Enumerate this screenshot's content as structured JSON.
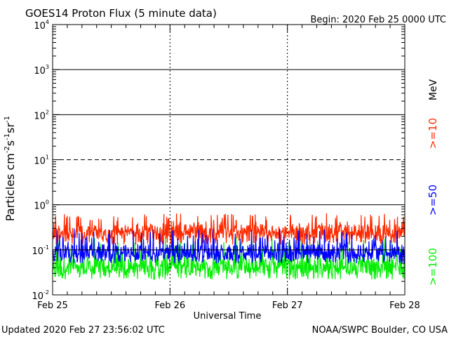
{
  "header": {
    "title": "GOES14 Proton Flux (5 minute data)",
    "begin": "Begin: 2020 Feb 25 0000 UTC"
  },
  "footer": {
    "updated": "Updated 2020 Feb 27 23:56:02 UTC",
    "credit": "NOAA/SWPC Boulder, CO USA"
  },
  "legend": {
    "unit": "MeV",
    "items": [
      {
        "label": ">=10",
        "color": "#ff2a00"
      },
      {
        "label": ">=50",
        "color": "#0000ff"
      },
      {
        "label": ">=100",
        "color": "#00ee00"
      }
    ]
  },
  "chart_data": {
    "type": "line",
    "xlabel": "Universal Time",
    "ylabel_parts": {
      "base": "Particles cm",
      "e1": "-2",
      "mid1": "s",
      "e2": "-1",
      "mid2": "sr",
      "e3": "-1"
    },
    "y_scale": "log",
    "ylim": [
      0.01,
      10000
    ],
    "x_ticks": [
      "Feb 25",
      "Feb 26",
      "Feb 27",
      "Feb 28"
    ],
    "y_ticks": [
      {
        "base": "10",
        "exp": "4",
        "value": 10000
      },
      {
        "base": "10",
        "exp": "3",
        "value": 1000
      },
      {
        "base": "10",
        "exp": "2",
        "value": 100
      },
      {
        "base": "10",
        "exp": "1",
        "value": 10
      },
      {
        "base": "10",
        "exp": "0",
        "value": 1
      },
      {
        "base": "10",
        "exp": "-1",
        "value": 0.1
      },
      {
        "base": "10",
        "exp": "-2",
        "value": 0.01
      }
    ],
    "reference_lines": [
      {
        "value": 1000,
        "style": "solid"
      },
      {
        "value": 100,
        "style": "solid"
      },
      {
        "value": 10,
        "style": "dashed"
      },
      {
        "value": 1,
        "style": "solid"
      },
      {
        "value": 0.1,
        "style": "solid"
      }
    ],
    "x_range_days": 3,
    "samples": 864,
    "series": [
      {
        "name": ">=10",
        "color": "#ff2a00",
        "min": 0.13,
        "max": 0.65,
        "typical": 0.25
      },
      {
        "name": ">=50",
        "color": "#0000ff",
        "min": 0.05,
        "max": 0.3,
        "typical": 0.09
      },
      {
        "name": ">=100",
        "color": "#00ee00",
        "min": 0.022,
        "max": 0.2,
        "typical": 0.045
      }
    ]
  }
}
